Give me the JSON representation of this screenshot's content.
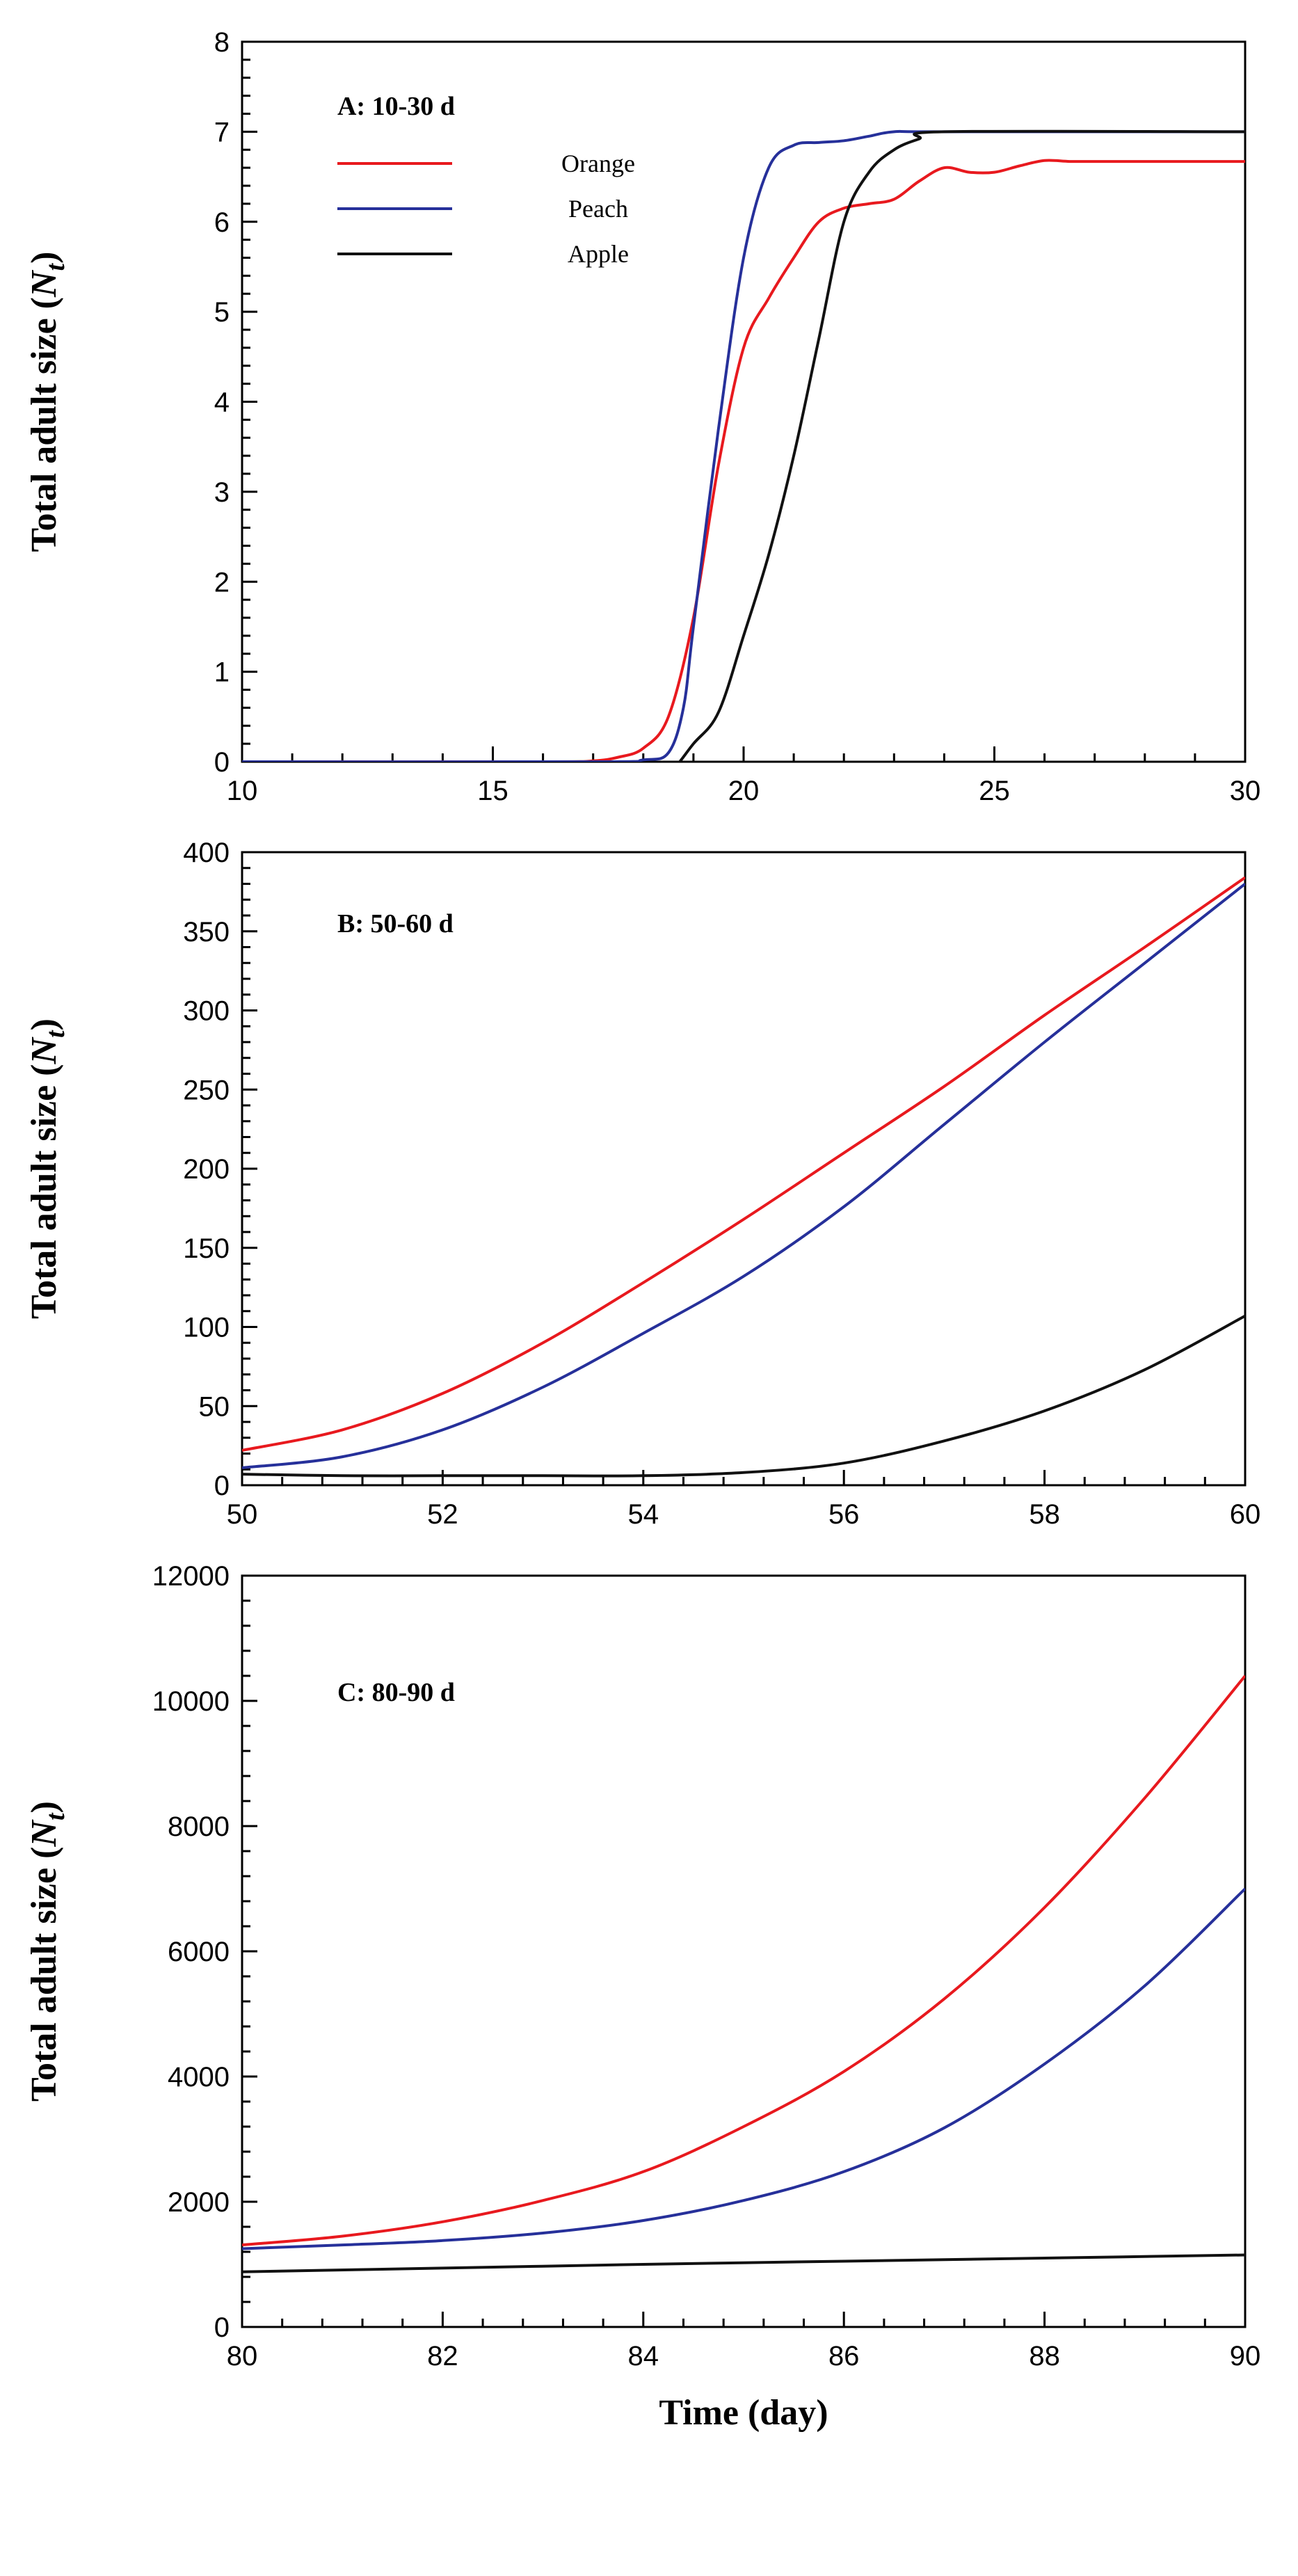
{
  "chart_data": [
    {
      "type": "line",
      "title": "A: 10-30 d",
      "xlabel": "",
      "ylabel": "Total adult size (Nt)",
      "ylabel_main": "Total adult size (",
      "ylabel_var": "N",
      "ylabel_sub": "t",
      "ylabel_close": ")",
      "xlim": [
        10,
        30
      ],
      "ylim": [
        0,
        8
      ],
      "xticks": [
        "10",
        "15",
        "20",
        "25",
        "30"
      ],
      "yticks": [
        "0",
        "1",
        "2",
        "3",
        "4",
        "5",
        "6",
        "7",
        "8"
      ],
      "legend": true,
      "series": [
        {
          "name": "Orange",
          "color": "#e8191e",
          "x": [
            10,
            16,
            17,
            17.5,
            18,
            18.5,
            19,
            19.5,
            20,
            20.5,
            21,
            21.5,
            22,
            22.5,
            23,
            23.5,
            24,
            24.5,
            25,
            25.5,
            26,
            26.5,
            27,
            30
          ],
          "y": [
            0,
            0,
            0.01,
            0.05,
            0.15,
            0.5,
            1.6,
            3.3,
            4.6,
            5.15,
            5.6,
            6.0,
            6.15,
            6.2,
            6.25,
            6.45,
            6.6,
            6.55,
            6.55,
            6.62,
            6.68,
            6.67,
            6.67,
            6.67
          ]
        },
        {
          "name": "Peach",
          "color": "#26309a",
          "x": [
            10,
            17,
            18,
            18.5,
            18.8,
            19,
            19.5,
            20,
            20.5,
            21,
            21.5,
            22,
            22.5,
            23,
            24,
            30
          ],
          "y": [
            0,
            0,
            0.02,
            0.1,
            0.6,
            1.5,
            3.7,
            5.6,
            6.6,
            6.85,
            6.88,
            6.9,
            6.95,
            7.0,
            7.0,
            7.0
          ]
        },
        {
          "name": "Apple",
          "color": "#111111",
          "x": [
            10,
            17,
            18,
            18.5,
            19,
            19.5,
            20,
            20.5,
            21,
            21.5,
            22,
            22.5,
            23,
            23.5,
            24,
            30
          ],
          "y": [
            -0.1,
            -0.1,
            -0.1,
            -0.12,
            0.2,
            0.55,
            1.4,
            2.3,
            3.4,
            4.7,
            6.0,
            6.55,
            6.8,
            6.92,
            7.0,
            7.0
          ]
        }
      ]
    },
    {
      "type": "line",
      "title": "B: 50-60 d",
      "xlabel": "",
      "ylabel": "Total adult size (Nt)",
      "ylabel_main": "Total adult size (",
      "ylabel_var": "N",
      "ylabel_sub": "t",
      "ylabel_close": ")",
      "xlim": [
        50,
        60
      ],
      "ylim": [
        0,
        400
      ],
      "xticks": [
        "50",
        "52",
        "54",
        "56",
        "58",
        "60"
      ],
      "yticks": [
        "0",
        "50",
        "100",
        "150",
        "200",
        "250",
        "300",
        "350",
        "400"
      ],
      "legend": false,
      "series": [
        {
          "name": "Orange",
          "color": "#e8191e",
          "x": [
            50,
            51,
            52,
            53,
            54,
            55,
            56,
            57,
            58,
            59,
            60
          ],
          "y": [
            22,
            35,
            58,
            90,
            128,
            168,
            210,
            252,
            297,
            340,
            384
          ]
        },
        {
          "name": "Peach",
          "color": "#26309a",
          "x": [
            50,
            51,
            52,
            53,
            54,
            55,
            56,
            57,
            58,
            59,
            60
          ],
          "y": [
            11,
            18,
            35,
            62,
            96,
            132,
            176,
            228,
            280,
            330,
            380
          ]
        },
        {
          "name": "Apple",
          "color": "#111111",
          "x": [
            50,
            51,
            52,
            53,
            54,
            55,
            56,
            57,
            58,
            59,
            60
          ],
          "y": [
            7,
            6,
            6,
            6,
            6,
            8,
            14,
            28,
            47,
            73,
            107
          ]
        }
      ]
    },
    {
      "type": "line",
      "title": "C: 80-90 d",
      "xlabel": "Time (day)",
      "ylabel": "Total adult size (Nt)",
      "ylabel_main": "Total adult size (",
      "ylabel_var": "N",
      "ylabel_sub": "t",
      "ylabel_close": ")",
      "xlim": [
        80,
        90
      ],
      "ylim": [
        0,
        12000
      ],
      "xticks": [
        "80",
        "82",
        "84",
        "86",
        "88",
        "90"
      ],
      "yticks": [
        "0",
        "2000",
        "4000",
        "6000",
        "8000",
        "10000",
        "12000"
      ],
      "legend": false,
      "series": [
        {
          "name": "Orange",
          "color": "#e8191e",
          "x": [
            80,
            81,
            82,
            83,
            84,
            85,
            86,
            87,
            88,
            89,
            90
          ],
          "y": [
            1310,
            1450,
            1680,
            2020,
            2480,
            3200,
            4080,
            5240,
            6700,
            8450,
            10400
          ]
        },
        {
          "name": "Peach",
          "color": "#26309a",
          "x": [
            80,
            81,
            82,
            83,
            84,
            85,
            86,
            87,
            88,
            89,
            90
          ],
          "y": [
            1250,
            1310,
            1380,
            1500,
            1700,
            2020,
            2480,
            3180,
            4200,
            5450,
            7000
          ]
        },
        {
          "name": "Apple",
          "color": "#111111",
          "x": [
            80,
            82,
            84,
            86,
            88,
            90
          ],
          "y": [
            880,
            940,
            1000,
            1050,
            1100,
            1150
          ]
        }
      ]
    }
  ]
}
